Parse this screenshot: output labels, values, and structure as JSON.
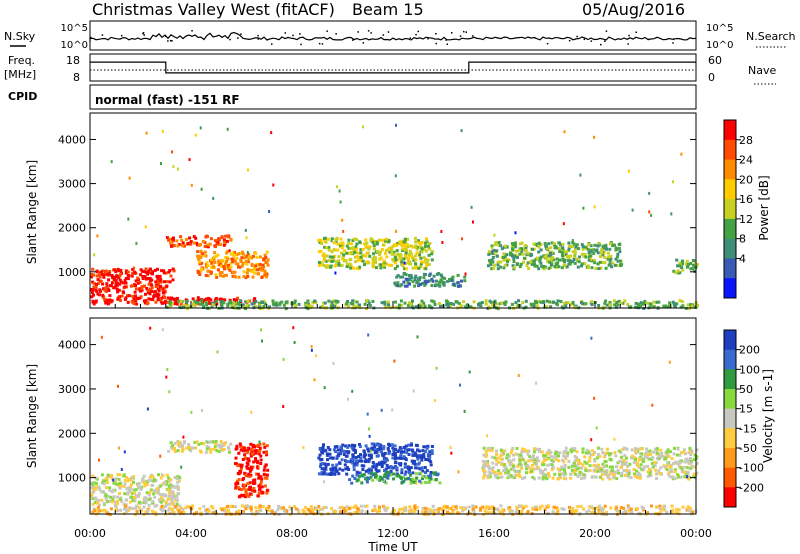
{
  "header": {
    "title": "Christmas Valley West (fitACF)",
    "beam": "Beam 15",
    "date": "05/Aug/2016"
  },
  "panels": {
    "noise": {
      "label": "N.Sky",
      "right_label": "N.Search",
      "ticks": [
        "10^5",
        "10^0"
      ]
    },
    "freq": {
      "label_line1": "Freq.",
      "label_line2": "[MHz]",
      "right_label": "Nave",
      "left_ticks": [
        "18",
        "8"
      ],
      "right_ticks": [
        "60",
        "0"
      ]
    },
    "cpid": {
      "label": "CPID",
      "text": "normal (fast) -151 RF"
    }
  },
  "colorbars": {
    "power": {
      "label": "Power [dB]",
      "ticks": [
        "28",
        "24",
        "20",
        "16",
        "12",
        "8",
        "4"
      ],
      "colors": [
        "#ff0000",
        "#ff4a00",
        "#ff8c00",
        "#ffcc00",
        "#c8d020",
        "#44a144",
        "#3f8f77",
        "#3a5bb5",
        "#0a14ff"
      ]
    },
    "velocity": {
      "label": "Velocity [m s-1]",
      "ticks": [
        "200",
        "100",
        "50",
        "15",
        "-15",
        "-50",
        "-100",
        "-200"
      ],
      "colors": [
        "#1d3fc0",
        "#3a6ad0",
        "#2f9a3f",
        "#88d840",
        "#c8c8c0",
        "#ffcc40",
        "#ff9a1a",
        "#ff5a00",
        "#ff0000"
      ]
    }
  },
  "chart_data": [
    {
      "type": "line",
      "name": "frequency",
      "x": [
        0,
        3.0,
        3.0,
        15.0,
        15.0,
        24
      ],
      "y": [
        15,
        15,
        11,
        11,
        15,
        15
      ],
      "ylim": [
        8,
        18
      ],
      "xlim": [
        0,
        24
      ]
    },
    {
      "type": "heatmap",
      "ylabel": "Slant Range [km]",
      "yticks": [
        "1000",
        "2000",
        "3000",
        "4000"
      ],
      "ylim": [
        180,
        4600
      ],
      "xlim": [
        0,
        24
      ],
      "colorscale": "power",
      "regions": [
        {
          "x": [
            0.0,
            3.3
          ],
          "y": [
            700,
            1100
          ],
          "level": 0
        },
        {
          "x": [
            0.0,
            3.0
          ],
          "y": [
            300,
            700
          ],
          "level": 0
        },
        {
          "x": [
            2.8,
            6.5
          ],
          "y": [
            300,
            450
          ],
          "level": 0
        },
        {
          "x": [
            3.0,
            5.6
          ],
          "y": [
            1600,
            1850
          ],
          "level": 1
        },
        {
          "x": [
            4.2,
            7.0
          ],
          "y": [
            900,
            1500
          ],
          "level": 2
        },
        {
          "x": [
            9.0,
            13.5
          ],
          "y": [
            1100,
            1800
          ],
          "level": 4
        },
        {
          "x": [
            12.0,
            14.8
          ],
          "y": [
            700,
            1000
          ],
          "level": 6
        },
        {
          "x": [
            15.7,
            21.0
          ],
          "y": [
            1100,
            1700
          ],
          "level": 5
        },
        {
          "x": [
            23.0,
            24.0
          ],
          "y": [
            1000,
            1300
          ],
          "level": 5
        },
        {
          "x": [
            3.0,
            24.0
          ],
          "y": [
            200,
            380
          ],
          "level": 5
        }
      ]
    },
    {
      "type": "heatmap",
      "xlabel": "Time UT",
      "ylabel": "Slant Range [km]",
      "xticks": [
        "00:00",
        "04:00",
        "08:00",
        "12:00",
        "16:00",
        "20:00",
        "00:00"
      ],
      "yticks": [
        "1000",
        "2000",
        "3000",
        "4000"
      ],
      "ylim": [
        180,
        4600
      ],
      "xlim": [
        0,
        24
      ],
      "colorscale": "velocity",
      "regions": [
        {
          "x": [
            0.0,
            3.5
          ],
          "y": [
            400,
            1100
          ],
          "level": 4
        },
        {
          "x": [
            3.0,
            5.6
          ],
          "y": [
            1600,
            1850
          ],
          "level": 4
        },
        {
          "x": [
            5.7,
            7.0
          ],
          "y": [
            600,
            1800
          ],
          "level": 8
        },
        {
          "x": [
            9.0,
            13.5
          ],
          "y": [
            1100,
            1800
          ],
          "level": 0
        },
        {
          "x": [
            10.2,
            13.8
          ],
          "y": [
            900,
            1150
          ],
          "level": 2
        },
        {
          "x": [
            15.5,
            24.0
          ],
          "y": [
            1000,
            1700
          ],
          "level": 4
        },
        {
          "x": [
            0.0,
            24.0
          ],
          "y": [
            200,
            400
          ],
          "level": 5
        }
      ]
    }
  ]
}
